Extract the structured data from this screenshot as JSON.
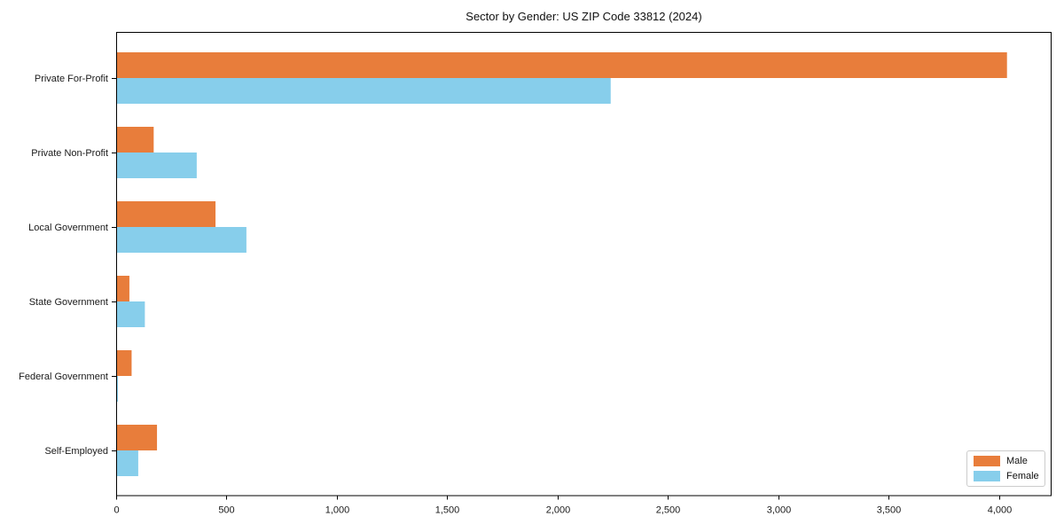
{
  "title": "Sector by Gender: US ZIP Code 33812 (2024)",
  "chart_data": {
    "type": "bar",
    "orientation": "horizontal",
    "title": "Sector by Gender: US ZIP Code 33812 (2024)",
    "categories": [
      "Private For-Profit",
      "Private Non-Profit",
      "Local Government",
      "State Government",
      "Federal Government",
      "Self-Employed"
    ],
    "series": [
      {
        "name": "Male",
        "color": "#E87D3B",
        "values": [
          4035,
          170,
          450,
          60,
          70,
          185
        ]
      },
      {
        "name": "Female",
        "color": "#87CEEB",
        "values": [
          2240,
          365,
          590,
          130,
          8,
          100
        ]
      }
    ],
    "xlabel": "",
    "ylabel": "",
    "xlim": [
      0,
      4237
    ],
    "xticks": [
      0,
      500,
      1000,
      1500,
      2000,
      2500,
      3000,
      3500,
      4000
    ],
    "xtick_labels": [
      "0",
      "500",
      "1,000",
      "1,500",
      "2,000",
      "2,500",
      "3,000",
      "3,500",
      "4,000"
    ],
    "grid": false,
    "legend_position": "lower right",
    "axis_color": "#000000",
    "tick_label_color": "#1a1a1a"
  }
}
